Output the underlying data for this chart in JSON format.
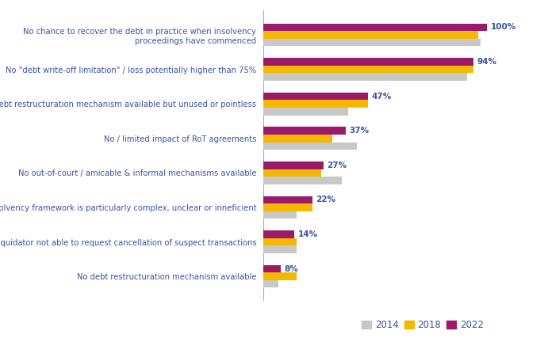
{
  "categories": [
    "No chance to recover the debt in practice when insolvency\nproceedings have commenced",
    "No \"debt write-off limitation\" / loss potentially higher than 75%",
    "Debt restructuration mechanism available but unused or pointless",
    "No / limited impact of RoT agreements",
    "No out-of-court / amicable & informal mechanisms available",
    "Insolvency framework is particularly complex, unclear or inneficient",
    "Liquidator not able to request cancellation of suspect transactions",
    "No debt restructuration mechanism available"
  ],
  "values_2014": [
    97,
    91,
    38,
    42,
    35,
    15,
    15,
    7
  ],
  "values_2018": [
    96,
    94,
    47,
    31,
    26,
    22,
    15,
    15
  ],
  "values_2022": [
    100,
    94,
    47,
    37,
    27,
    22,
    14,
    8
  ],
  "labels_2022": [
    "100%",
    "94%",
    "47%",
    "37%",
    "27%",
    "22%",
    "14%",
    "8%"
  ],
  "color_2014": "#c8c8c8",
  "color_2018": "#f5b800",
  "color_2022": "#9b1a6a",
  "label_color": "#3953a4",
  "bar_height": 0.22,
  "xlim": [
    0,
    115
  ],
  "legend_labels": [
    "2014",
    "2018",
    "2022"
  ],
  "figsize": [
    6.91,
    4.32
  ],
  "dpi": 100
}
